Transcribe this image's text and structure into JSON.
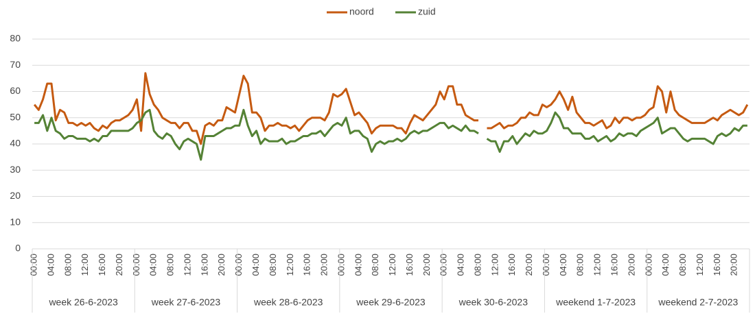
{
  "chart_data": {
    "type": "line",
    "categories": [
      "00:00",
      null,
      null,
      null,
      "04:00",
      null,
      null,
      null,
      "08:00",
      null,
      null,
      null,
      "12:00",
      null,
      null,
      null,
      "16:00",
      null,
      null,
      null,
      "20:00",
      null,
      null,
      null,
      "00:00",
      null,
      null,
      null,
      "04:00",
      null,
      null,
      null,
      "08:00",
      null,
      null,
      null,
      "12:00",
      null,
      null,
      null,
      "16:00",
      null,
      null,
      null,
      "20:00",
      null,
      null,
      null,
      "00:00",
      null,
      null,
      null,
      "04:00",
      null,
      null,
      null,
      "08:00",
      null,
      null,
      null,
      "12:00",
      null,
      null,
      null,
      "16:00",
      null,
      null,
      null,
      "20:00",
      null,
      null,
      null,
      "00:00",
      null,
      null,
      null,
      "04:00",
      null,
      null,
      null,
      "08:00",
      null,
      null,
      null,
      "12:00",
      null,
      null,
      null,
      "16:00",
      null,
      null,
      null,
      "20:00",
      null,
      null,
      null,
      "00:00",
      null,
      null,
      null,
      "04:00",
      null,
      null,
      null,
      "08:00",
      null,
      null,
      null,
      "12:00",
      null,
      null,
      null,
      "16:00",
      null,
      null,
      null,
      "20:00",
      null,
      null,
      null,
      "00:00",
      null,
      null,
      null,
      "04:00",
      null,
      null,
      null,
      "08:00",
      null,
      null,
      null,
      "12:00",
      null,
      null,
      null,
      "16:00",
      null,
      null,
      null,
      "20:00",
      null,
      null,
      null,
      "00:00",
      null,
      null,
      null,
      "04:00",
      null,
      null,
      null,
      "08:00",
      null,
      null,
      null,
      "12:00",
      null,
      null,
      null,
      "16:00",
      null,
      null,
      null,
      "20:00",
      null,
      null,
      null
    ],
    "groups": [
      "week 26-6-2023",
      "week 27-6-2023",
      "week 28-6-2023",
      "week 29-6-2023",
      "week 30-6-2023",
      "weekend 1-7-2023",
      "weekend 2-7-2023"
    ],
    "series": [
      {
        "name": "noord",
        "color": "#c55a11",
        "values": [
          55,
          53,
          57,
          63,
          63,
          49,
          53,
          52,
          48,
          48,
          47,
          48,
          47,
          48,
          46,
          45,
          47,
          46,
          48,
          49,
          49,
          50,
          51,
          53,
          57,
          45,
          67,
          59,
          55,
          53,
          50,
          49,
          48,
          48,
          46,
          48,
          48,
          45,
          45,
          40,
          47,
          48,
          47,
          49,
          49,
          54,
          53,
          52,
          59,
          66,
          63,
          52,
          52,
          50,
          45,
          47,
          47,
          48,
          47,
          47,
          46,
          47,
          45,
          47,
          49,
          50,
          50,
          50,
          49,
          52,
          59,
          58,
          59,
          61,
          56,
          51,
          52,
          50,
          48,
          44,
          46,
          47,
          47,
          47,
          47,
          46,
          46,
          44,
          48,
          51,
          50,
          49,
          51,
          53,
          55,
          60,
          57,
          62,
          62,
          55,
          55,
          51,
          50,
          49,
          49,
          null,
          46,
          46,
          47,
          48,
          46,
          47,
          47,
          48,
          50,
          50,
          52,
          51,
          51,
          55,
          54,
          55,
          57,
          60,
          57,
          53,
          58,
          52,
          50,
          48,
          48,
          47,
          48,
          49,
          46,
          47,
          50,
          48,
          50,
          50,
          49,
          50,
          50,
          51,
          53,
          54,
          62,
          60,
          52,
          60,
          53,
          51,
          50,
          49,
          48,
          48,
          48,
          48,
          49,
          50,
          49,
          51,
          52,
          53,
          52,
          51,
          52,
          55
        ]
      },
      {
        "name": "zuid",
        "color": "#548235",
        "values": [
          48,
          48,
          51,
          45,
          50,
          45,
          44,
          42,
          43,
          43,
          42,
          42,
          42,
          41,
          42,
          41,
          43,
          43,
          45,
          45,
          45,
          45,
          45,
          46,
          48,
          49,
          52,
          53,
          45,
          43,
          42,
          44,
          43,
          40,
          38,
          41,
          42,
          41,
          40,
          34,
          43,
          43,
          43,
          44,
          45,
          46,
          46,
          47,
          47,
          53,
          47,
          43,
          45,
          40,
          42,
          41,
          41,
          41,
          42,
          40,
          41,
          41,
          42,
          43,
          43,
          44,
          44,
          45,
          43,
          45,
          47,
          48,
          47,
          50,
          44,
          45,
          45,
          43,
          42,
          37,
          40,
          41,
          40,
          41,
          41,
          42,
          41,
          42,
          44,
          45,
          44,
          45,
          45,
          46,
          47,
          48,
          48,
          46,
          47,
          46,
          45,
          47,
          45,
          45,
          44,
          null,
          42,
          41,
          41,
          37,
          41,
          41,
          43,
          40,
          42,
          44,
          43,
          45,
          44,
          44,
          45,
          48,
          52,
          50,
          46,
          46,
          44,
          44,
          44,
          42,
          42,
          43,
          41,
          42,
          43,
          41,
          42,
          44,
          43,
          44,
          44,
          43,
          45,
          46,
          47,
          48,
          50,
          44,
          45,
          46,
          46,
          44,
          42,
          41,
          42,
          42,
          42,
          42,
          41,
          40,
          43,
          44,
          43,
          44,
          46,
          45,
          47,
          47
        ]
      }
    ],
    "ylim": [
      0,
      80
    ],
    "yticks": [
      0,
      10,
      20,
      30,
      40,
      50,
      60,
      70,
      80
    ],
    "grid": true,
    "legend": "top"
  }
}
